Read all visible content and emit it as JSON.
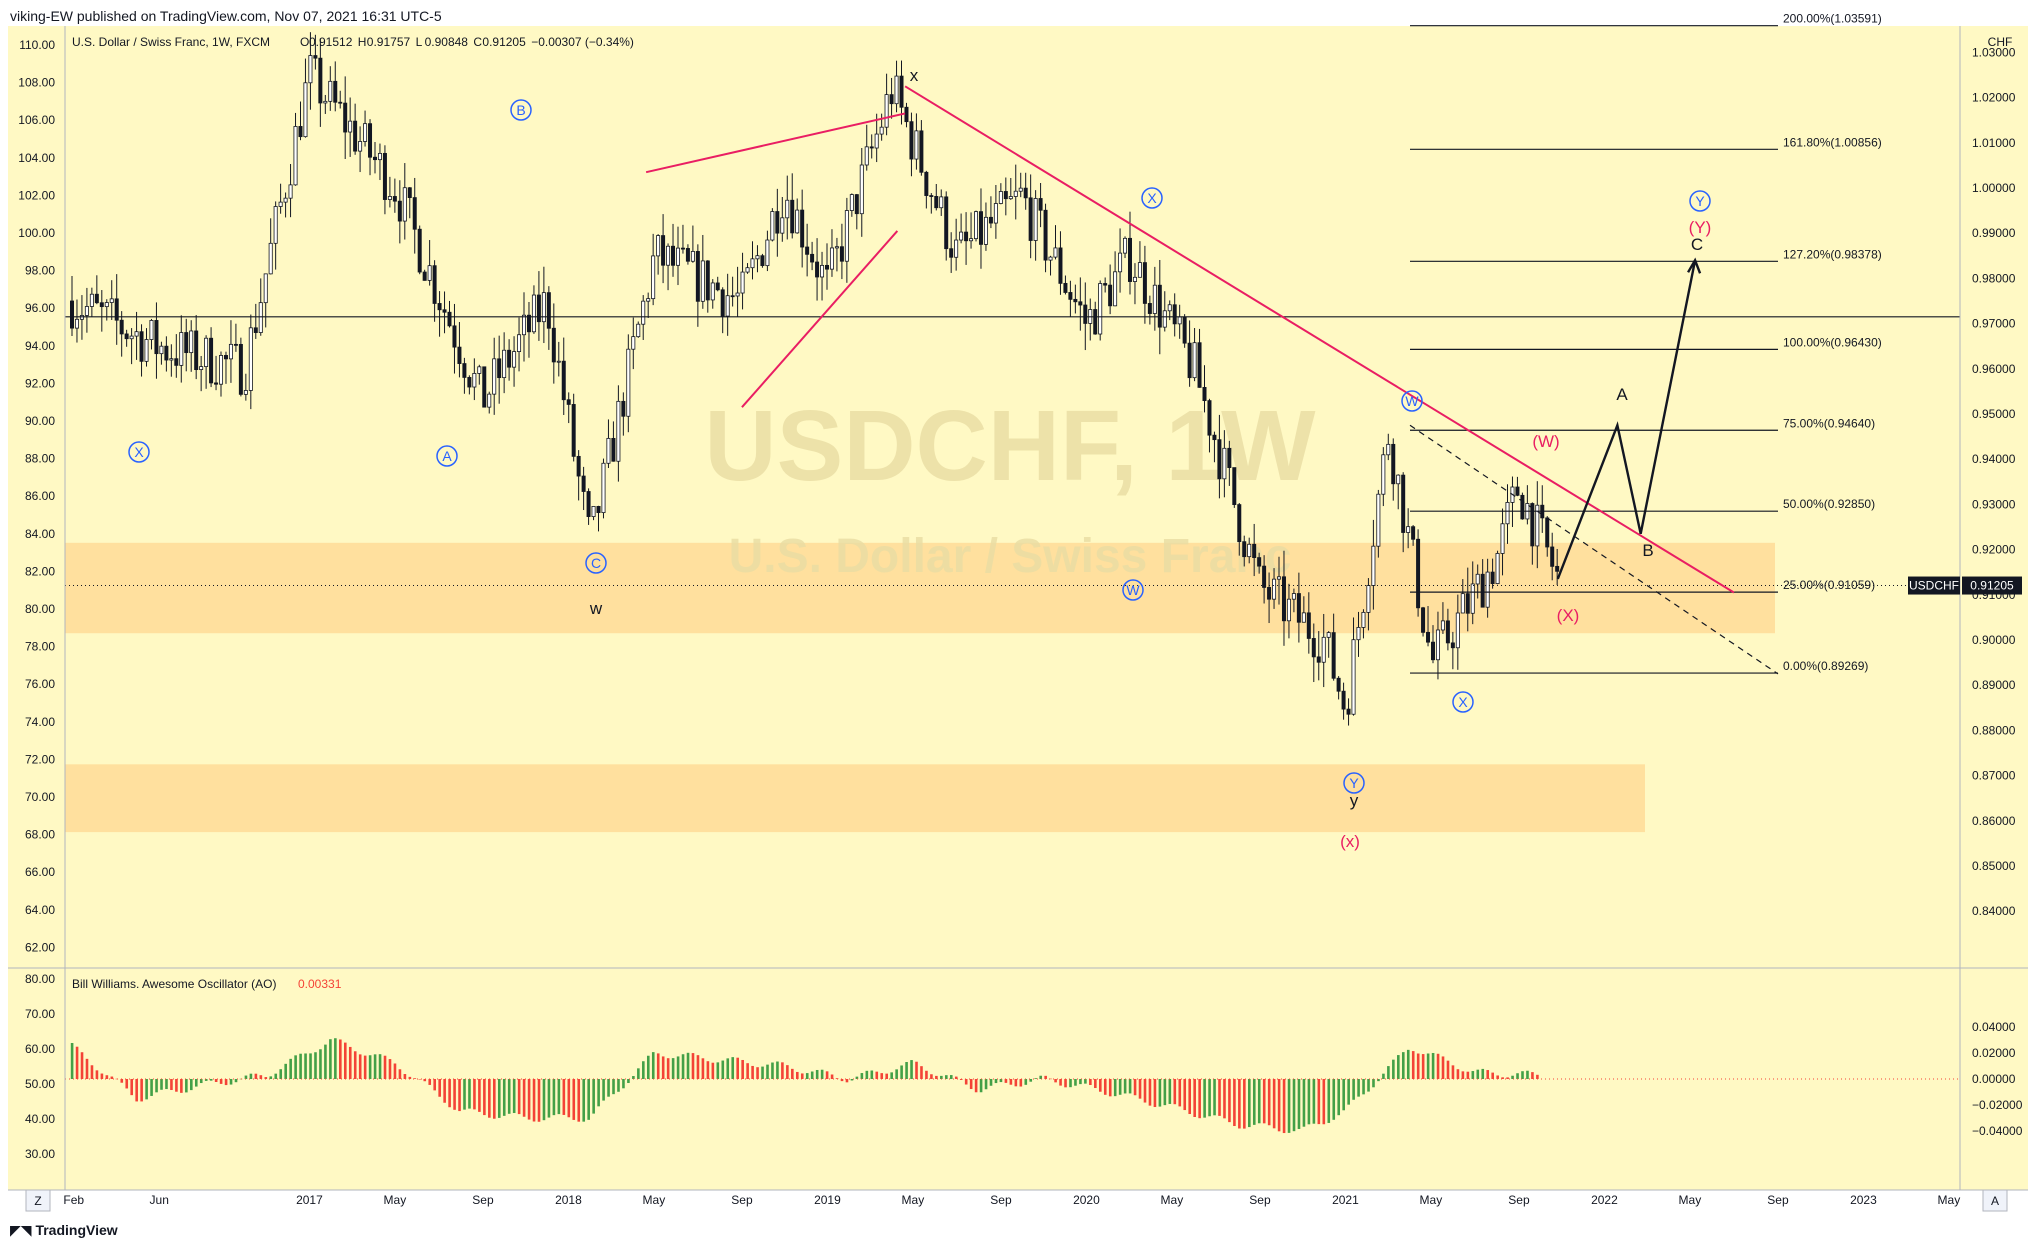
{
  "header": {
    "published": "viking-EW published on TradingView.com, Nov 07, 2021 16:31 UTC-5"
  },
  "footer": {
    "brand": "TradingView"
  },
  "legend": {
    "title": "U.S. Dollar / Swiss Franc, 1W, FXCM",
    "o_label": "O",
    "o": "0.91512",
    "h_label": "H",
    "h": "0.91757",
    "l_label": "L",
    "l": "0.90848",
    "c_label": "C",
    "c": "0.91205",
    "change": "−0.00307 (−0.34%)"
  },
  "watermark": {
    "symbol": "USDCHF, 1W",
    "name": "U.S. Dollar / Swiss Franc"
  },
  "price_axis": {
    "currency": "CHF",
    "ticks": [
      "1.03000",
      "1.02000",
      "1.01000",
      "1.00000",
      "0.99000",
      "0.98000",
      "0.97000",
      "0.96000",
      "0.95000",
      "0.94000",
      "0.93000",
      "0.92000",
      "0.91000",
      "0.90000",
      "0.89000",
      "0.88000",
      "0.87000",
      "0.86000",
      "0.85000",
      "0.84000"
    ],
    "ticks_values": [
      1.03,
      1.02,
      1.01,
      1.0,
      0.99,
      0.98,
      0.97,
      0.96,
      0.95,
      0.94,
      0.93,
      0.92,
      0.91,
      0.9,
      0.89,
      0.88,
      0.87,
      0.86,
      0.85,
      0.84
    ],
    "last_symbol": "USDCHF",
    "last_price": "0.91205"
  },
  "left_axis": {
    "ticks": [
      "110.00",
      "108.00",
      "106.00",
      "104.00",
      "102.00",
      "100.00",
      "98.00",
      "96.00",
      "94.00",
      "92.00",
      "90.00",
      "88.00",
      "86.00",
      "84.00",
      "82.00",
      "80.00",
      "78.00",
      "76.00",
      "74.00",
      "72.00",
      "70.00",
      "68.00",
      "66.00",
      "64.00",
      "62.00"
    ],
    "ticks_values": [
      110,
      108,
      106,
      104,
      102,
      100,
      98,
      96,
      94,
      92,
      90,
      88,
      86,
      84,
      82,
      80,
      78,
      76,
      74,
      72,
      70,
      68,
      66,
      64,
      62
    ]
  },
  "oscillator": {
    "label": "Bill Williams. Awesome Oscillator (AO)",
    "value": "0.00331",
    "right_ticks": [
      "0.04000",
      "0.02000",
      "0.00000",
      "−0.02000",
      "−0.04000"
    ],
    "right_ticks_values": [
      0.04,
      0.02,
      0.0,
      -0.02,
      -0.04
    ],
    "left_ticks": [
      "80.00",
      "70.00",
      "60.00",
      "50.00",
      "40.00",
      "30.00"
    ],
    "left_ticks_values": [
      80,
      70,
      60,
      50,
      40,
      30
    ]
  },
  "time_axis": {
    "labels": [
      "Feb",
      "Jun",
      "2017",
      "May",
      "Sep",
      "2018",
      "May",
      "Sep",
      "2019",
      "May",
      "Sep",
      "2020",
      "May",
      "Sep",
      "2021",
      "May",
      "Sep",
      "2022",
      "May",
      "Sep",
      "2023",
      "May"
    ],
    "z_button": "Z",
    "a_button": "A"
  },
  "fib_levels": [
    {
      "label": "200.00%(1.03591)",
      "price": 1.03591
    },
    {
      "label": "161.80%(1.00856)",
      "price": 1.00856
    },
    {
      "label": "127.20%(0.98378)",
      "price": 0.98378
    },
    {
      "label": "100.00%(0.96430)",
      "price": 0.9643
    },
    {
      "label": "75.00%(0.94640)",
      "price": 0.9464
    },
    {
      "label": "50.00%(0.92850)",
      "price": 0.9285
    },
    {
      "label": "25.00%(0.91059)",
      "price": 0.91059
    },
    {
      "label": "0.00%(0.89269)",
      "price": 0.89269
    }
  ],
  "wave_labels": {
    "blue_circled": [
      "X",
      "A",
      "B",
      "C",
      "X",
      "W",
      "W",
      "Y",
      "X",
      "Y"
    ],
    "black": [
      "x",
      "w",
      "y",
      "A",
      "B",
      "C"
    ],
    "red": [
      "(W)",
      "(X)",
      "(Y)",
      "(x)"
    ]
  },
  "colors": {
    "background": "#fff9c4",
    "zone": "#ffcc80",
    "trendline": "#e91e63",
    "blue_label": "#2962ff",
    "red_label": "#e91e63",
    "ao_up": "#43a047",
    "ao_down": "#f44336",
    "candle": "#131722"
  },
  "chart_data": [
    {
      "type": "candlestick",
      "title": "U.S. Dollar / Swiss Franc, 1W, FXCM",
      "x_range": [
        "2016-02",
        "2023-06"
      ],
      "y_range": [
        0.834,
        1.0375
      ],
      "x": [
        "2016-02",
        "2016-06",
        "2016-10",
        "2017-01",
        "2017-05",
        "2017-09",
        "2017-12",
        "2018-02",
        "2018-05",
        "2018-09",
        "2018-11",
        "2019-01",
        "2019-04",
        "2019-07",
        "2019-10",
        "2020-01",
        "2020-03",
        "2020-06",
        "2020-09",
        "2020-12",
        "2021-01",
        "2021-03",
        "2021-05",
        "2021-08",
        "2021-09",
        "2021-11"
      ],
      "y": [
        0.975,
        0.965,
        0.96,
        1.025,
        1.0,
        0.953,
        0.975,
        0.921,
        0.985,
        0.975,
        1.0,
        0.978,
        1.022,
        0.985,
        0.998,
        0.97,
        0.985,
        0.96,
        0.912,
        0.9,
        0.885,
        0.946,
        0.895,
        0.918,
        0.934,
        0.912
      ],
      "last_close": 0.91205,
      "grid": false
    },
    {
      "type": "area",
      "title": "Bill Williams. Awesome Oscillator (AO)",
      "y_range": [
        -0.05,
        0.05
      ],
      "x": [
        "2016-02",
        "2016-05",
        "2016-08",
        "2016-11",
        "2017-02",
        "2017-05",
        "2017-08",
        "2017-11",
        "2018-02",
        "2018-05",
        "2018-08",
        "2018-11",
        "2019-02",
        "2019-05",
        "2019-08",
        "2019-11",
        "2020-02",
        "2020-05",
        "2020-08",
        "2020-11",
        "2021-01",
        "2021-04",
        "2021-07",
        "2021-10"
      ],
      "y": [
        0.025,
        -0.015,
        -0.005,
        0.003,
        0.03,
        0.012,
        -0.025,
        -0.03,
        -0.03,
        0.02,
        0.015,
        0.01,
        0.0,
        0.012,
        -0.008,
        0.0,
        -0.01,
        -0.022,
        -0.035,
        -0.04,
        -0.025,
        0.025,
        0.005,
        0.003
      ],
      "last_value": 0.00331
    }
  ]
}
